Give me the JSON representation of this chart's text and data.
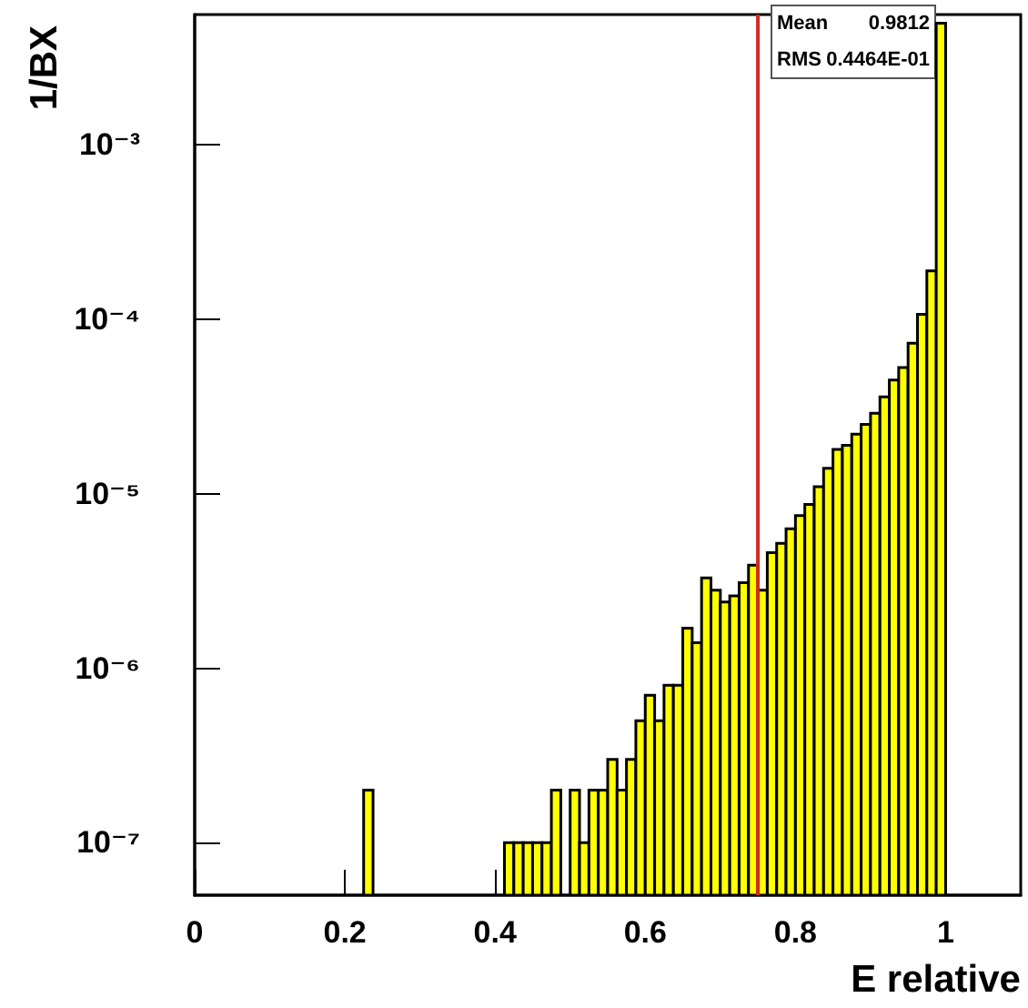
{
  "chart_data": {
    "type": "histogram",
    "xlabel": "E relative",
    "ylabel": "1/BX",
    "bins": [
      0,
      0.0125,
      0.025,
      0.0375,
      0.05,
      0.0625,
      0.075,
      0.0875,
      0.1,
      0.1125,
      0.125,
      0.1375,
      0.15,
      0.1625,
      0.175,
      0.1875,
      0.2,
      0.2125,
      0.225,
      0.2375,
      0.25,
      0.2625,
      0.275,
      0.2875,
      0.3,
      0.3125,
      0.325,
      0.3375,
      0.35,
      0.3625,
      0.375,
      0.3875,
      0.4,
      0.4125,
      0.425,
      0.4375,
      0.45,
      0.4625,
      0.475,
      0.4875,
      0.5,
      0.5125,
      0.525,
      0.5375,
      0.55,
      0.5625,
      0.575,
      0.5875,
      0.6,
      0.6125,
      0.625,
      0.6375,
      0.65,
      0.6625,
      0.675,
      0.6875,
      0.7,
      0.7125,
      0.725,
      0.7375,
      0.75,
      0.7625,
      0.775,
      0.7875,
      0.8,
      0.8125,
      0.825,
      0.8375,
      0.85,
      0.8625,
      0.875,
      0.8875,
      0.9,
      0.9125,
      0.925,
      0.9375,
      0.95,
      0.9625,
      0.975,
      0.9875,
      1.0
    ],
    "values": [
      null,
      null,
      null,
      null,
      null,
      null,
      null,
      null,
      null,
      null,
      null,
      null,
      null,
      null,
      null,
      null,
      null,
      null,
      2e-07,
      null,
      null,
      null,
      null,
      null,
      null,
      null,
      null,
      null,
      null,
      null,
      null,
      null,
      null,
      1e-07,
      1e-07,
      1e-07,
      1e-07,
      1e-07,
      2e-07,
      null,
      2e-07,
      1e-07,
      2e-07,
      2e-07,
      3e-07,
      2e-07,
      3e-07,
      5e-07,
      7e-07,
      5e-07,
      8e-07,
      8e-07,
      1.7e-06,
      1.4e-06,
      3.3e-06,
      2.8e-06,
      2.4e-06,
      2.6e-06,
      3.1e-06,
      3.9e-06,
      2.8e-06,
      4.6e-06,
      5.2e-06,
      6.3e-06,
      7.5e-06,
      8.7e-06,
      1.1e-05,
      1.4e-05,
      1.8e-05,
      1.9e-05,
      2.2e-05,
      2.5e-05,
      2.9e-05,
      3.6e-05,
      4.5e-05,
      5.3e-05,
      7.3e-05,
      0.000107,
      0.00019,
      0.005
    ],
    "color": "#ffff00",
    "log": "y",
    "xlim": [
      0,
      1.1
    ],
    "xticks": [
      0,
      0.2,
      0.4,
      0.6,
      0.8,
      1
    ],
    "ylim": [
      5e-08,
      0.0056
    ],
    "yticks": [
      {
        "value": 1e-07,
        "label": "10⁻⁷"
      },
      {
        "value": 1e-06,
        "label": "10⁻⁶"
      },
      {
        "value": 1e-05,
        "label": "10⁻⁵"
      },
      {
        "value": 0.0001,
        "label": "10⁻⁴"
      },
      {
        "value": 0.001,
        "label": "10⁻³"
      }
    ],
    "ref_lines": [
      {
        "axis": "x",
        "value": 0.75,
        "color": "#d42a1e"
      }
    ],
    "annotations": [
      "Mean",
      "0.9812",
      "RMS",
      "0.4464E-01"
    ],
    "grid": false
  }
}
